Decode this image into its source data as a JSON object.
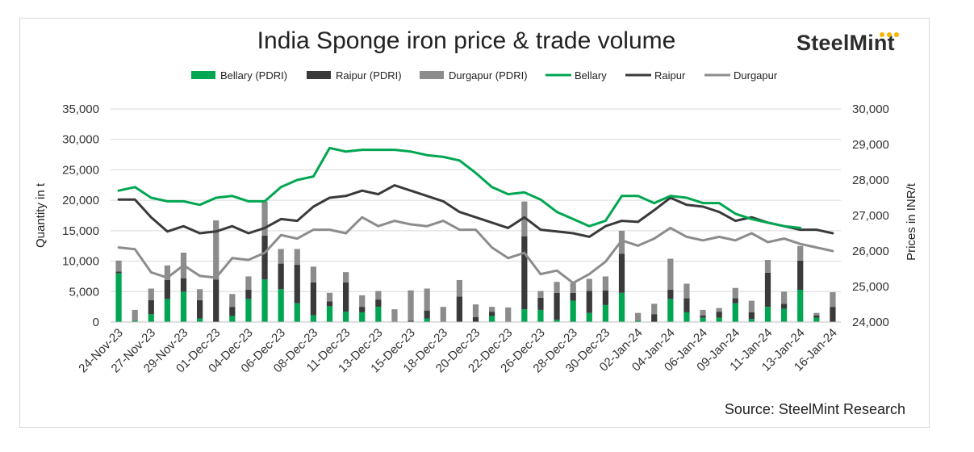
{
  "title": "India Sponge iron price & trade volume",
  "brand": "SteelMint",
  "source": "Source: SteelMint Research",
  "colors": {
    "bellary": "#00a651",
    "raipur": "#3a3a3a",
    "durgapur": "#8c8c8c",
    "grid": "#d9d9d9",
    "logo_dot": "#f5b400"
  },
  "chart_data": {
    "type": "bar",
    "title": "India Sponge iron price & trade volume",
    "xlabel": "",
    "ylabel": "Quantity in t",
    "y2label": "Prices in INR/t",
    "ylim": [
      0,
      35000
    ],
    "y2lim": [
      24000,
      30000
    ],
    "y_ticks": [
      "0",
      "5,000",
      "10,000",
      "15,000",
      "20,000",
      "25,000",
      "30,000",
      "35,000"
    ],
    "y2_ticks": [
      "24,000",
      "25,000",
      "26,000",
      "27,000",
      "28,000",
      "29,000",
      "30,000"
    ],
    "grid": true,
    "legend_position": "top",
    "x_tick_labels": [
      "24-Nov-23",
      "27-Nov-23",
      "29-Nov-23",
      "01-Dec-23",
      "04-Dec-23",
      "06-Dec-23",
      "08-Dec-23",
      "11-Dec-23",
      "13-Dec-23",
      "15-Dec-23",
      "18-Dec-23",
      "20-Dec-23",
      "22-Dec-23",
      "26-Dec-23",
      "28-Dec-23",
      "30-Dec-23",
      "02-Jan-24",
      "04-Jan-24",
      "06-Jan-24",
      "09-Jan-24",
      "11-Jan-24",
      "13-Jan-24",
      "16-Jan-24"
    ],
    "tick_every": 2,
    "point_count": 45,
    "stacked_series": [
      {
        "name": "Bellary (PDRI)",
        "values": [
          8000,
          200,
          1300,
          3800,
          5000,
          600,
          0,
          1000,
          3800,
          7000,
          5400,
          3100,
          1100,
          2600,
          1700,
          1600,
          2500,
          0,
          0,
          600,
          0,
          0,
          0,
          1000,
          0,
          2100,
          2000,
          400,
          3500,
          1500,
          2800,
          4800,
          200,
          0,
          3800,
          1600,
          700,
          700,
          3100,
          500,
          2500,
          2200,
          5300,
          700,
          0
        ]
      },
      {
        "name": "Raipur (PDRI)",
        "values": [
          300,
          0,
          2300,
          3100,
          2200,
          3000,
          7000,
          1500,
          1500,
          7200,
          4200,
          6300,
          5400,
          800,
          4800,
          900,
          1200,
          0,
          200,
          1300,
          0,
          4200,
          800,
          700,
          0,
          12000,
          2000,
          4400,
          1300,
          3600,
          2400,
          6400,
          0,
          1300,
          1500,
          2300,
          400,
          1000,
          800,
          1100,
          5600,
          800,
          4800,
          400,
          2500
        ]
      },
      {
        "name": "Durgapur (PDRI)",
        "values": [
          1800,
          1800,
          1900,
          2400,
          4200,
          1800,
          9700,
          2100,
          2200,
          5600,
          2400,
          2600,
          2600,
          1400,
          1700,
          1900,
          1400,
          2100,
          5000,
          3600,
          2500,
          2700,
          2100,
          800,
          2400,
          5700,
          1100,
          1800,
          1600,
          2000,
          2300,
          3800,
          1300,
          1700,
          5100,
          2400,
          900,
          600,
          1700,
          1900,
          2100,
          2000,
          2400,
          400,
          2400
        ]
      }
    ],
    "line_series": [
      {
        "name": "Bellary",
        "values": [
          27700,
          27800,
          27500,
          27400,
          27400,
          27300,
          27500,
          27550,
          27400,
          27400,
          27800,
          28000,
          28100,
          28900,
          28800,
          28850,
          28850,
          28850,
          28800,
          28700,
          28650,
          28550,
          28200,
          27800,
          27600,
          27650,
          27450,
          27100,
          26900,
          26700,
          26850,
          27550,
          27550,
          27350,
          27550,
          27500,
          27350,
          27350,
          27050,
          26900,
          26800,
          26700,
          26650,
          null,
          null
        ]
      },
      {
        "name": "Raipur",
        "values": [
          27450,
          27450,
          26950,
          26550,
          26700,
          26500,
          26550,
          26700,
          26500,
          26650,
          26900,
          26850,
          27250,
          27500,
          27550,
          27700,
          27600,
          27850,
          27700,
          27550,
          27400,
          27100,
          26950,
          26800,
          26650,
          26950,
          26600,
          26550,
          26500,
          26400,
          26700,
          26850,
          26820,
          27150,
          27500,
          27300,
          27250,
          27100,
          26850,
          26950,
          26800,
          26700,
          26600,
          26600,
          26500
        ]
      },
      {
        "name": "Durgapur",
        "values": [
          26100,
          26050,
          25400,
          25250,
          25600,
          25300,
          25250,
          25800,
          25750,
          25950,
          26450,
          26350,
          26600,
          26600,
          26500,
          26950,
          26700,
          26850,
          26750,
          26700,
          26850,
          26600,
          26600,
          26100,
          25800,
          25950,
          25350,
          25450,
          25100,
          25350,
          25700,
          26300,
          26150,
          26350,
          26650,
          26400,
          26300,
          26400,
          26300,
          26500,
          26250,
          26350,
          26200,
          26100,
          26000
        ]
      }
    ]
  }
}
